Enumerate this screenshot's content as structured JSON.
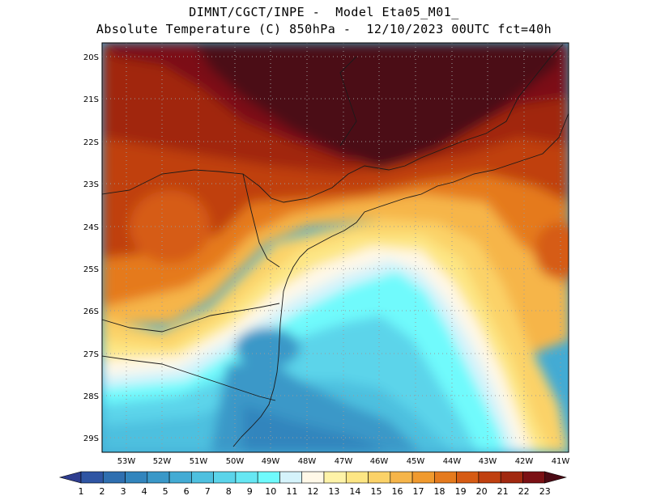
{
  "header": {
    "line1": "DIMNT/CGCT/INPE -  Model Eta05_M01_",
    "line2": "Absolute Temperature (C) 850hPa -  12/10/2023 00UTC fct=40h"
  },
  "axes": {
    "lat_labels": [
      "20S",
      "21S",
      "22S",
      "23S",
      "24S",
      "25S",
      "26S",
      "27S",
      "28S",
      "29S"
    ],
    "lon_labels": [
      "53W",
      "52W",
      "51W",
      "50W",
      "49W",
      "48W",
      "47W",
      "46W",
      "45W",
      "44W",
      "43W",
      "42W",
      "41W"
    ]
  },
  "colorbar": {
    "labels": [
      "1",
      "2",
      "3",
      "4",
      "5",
      "6",
      "7",
      "8",
      "9",
      "10",
      "11",
      "12",
      "13",
      "14",
      "15",
      "16",
      "17",
      "18",
      "19",
      "20",
      "21",
      "22",
      "23"
    ],
    "colors": [
      "#2e3d8f",
      "#2f55a3",
      "#2f6fb0",
      "#3285bd",
      "#3a98c8",
      "#43abd4",
      "#4ec0df",
      "#5bd4ea",
      "#66e7f3",
      "#6ffafc",
      "#d5f3fb",
      "#fff8e8",
      "#fef3a8",
      "#fde684",
      "#fbd268",
      "#f6b54a",
      "#f09a2e",
      "#e57a1d",
      "#d65b14",
      "#c0400f",
      "#a1280f",
      "#7b1014",
      "#4b0a14"
    ]
  }
}
